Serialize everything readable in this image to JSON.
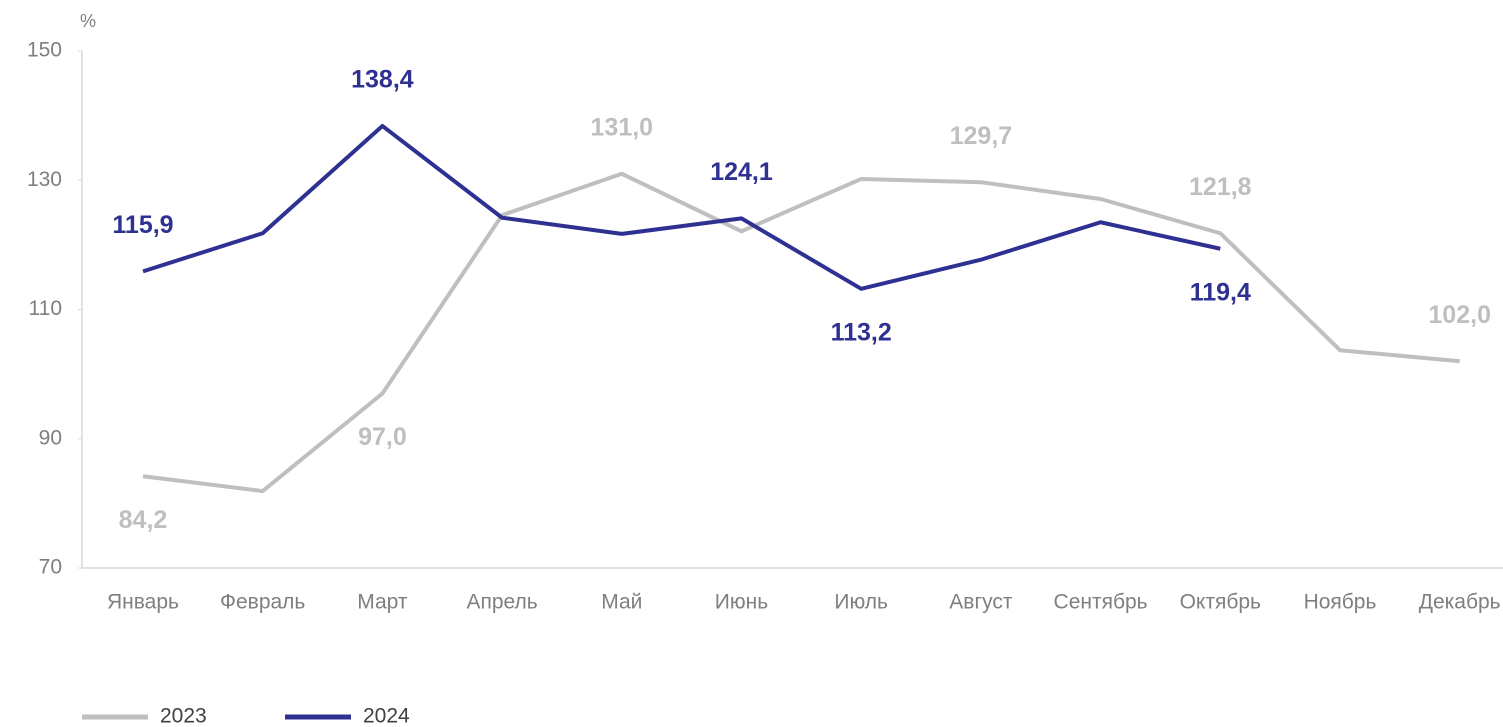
{
  "chart_data": {
    "type": "line",
    "y_axis_label": "%",
    "categories": [
      "Январь",
      "Февраль",
      "Март",
      "Апрель",
      "Май",
      "Июнь",
      "Июль",
      "Август",
      "Сентябрь",
      "Октябрь",
      "Ноябрь",
      "Декабрь"
    ],
    "series": [
      {
        "name": "2023",
        "color": "#bfbfbf",
        "values": [
          84.2,
          81.9,
          97.0,
          124.6,
          131.0,
          122.1,
          130.2,
          129.7,
          127.1,
          121.8,
          103.7,
          102.0
        ],
        "value_labels": [
          "84,2",
          null,
          "97,0",
          null,
          "131,0",
          null,
          null,
          "129,7",
          null,
          "121,8",
          null,
          "102,0"
        ]
      },
      {
        "name": "2024",
        "color": "#2e3192",
        "values": [
          115.9,
          121.8,
          138.4,
          124.2,
          121.7,
          124.1,
          113.2,
          117.7,
          123.5,
          119.4,
          null,
          null
        ],
        "value_labels": [
          "115,9",
          null,
          "138,4",
          null,
          null,
          "124,1",
          "113,2",
          null,
          null,
          "119,4",
          null,
          null
        ]
      }
    ],
    "ylim": [
      70,
      150
    ],
    "yticks": [
      70,
      90,
      110,
      130,
      150
    ],
    "grid": false
  }
}
